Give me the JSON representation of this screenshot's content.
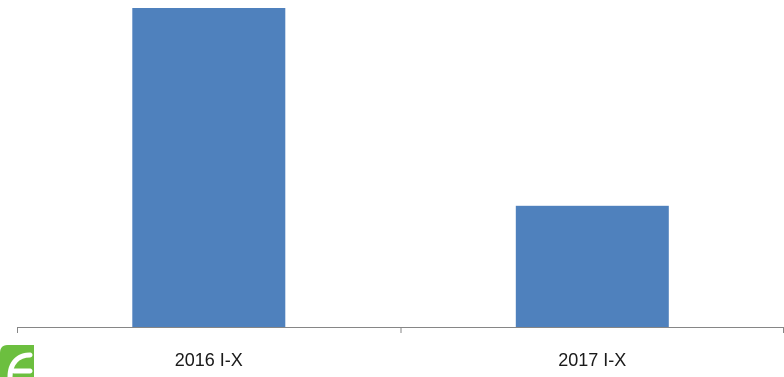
{
  "chart_data": {
    "type": "bar",
    "categories": [
      "2016 I-X",
      "2017 I-X"
    ],
    "values": [
      100,
      38
    ],
    "ylim": [
      0,
      100
    ],
    "grid": false,
    "legend": "none",
    "bar_color": "#4f81bd",
    "axis_color": "#868686"
  },
  "logo": {
    "name": "green-logo-icon",
    "color": "#6cbf3f"
  }
}
